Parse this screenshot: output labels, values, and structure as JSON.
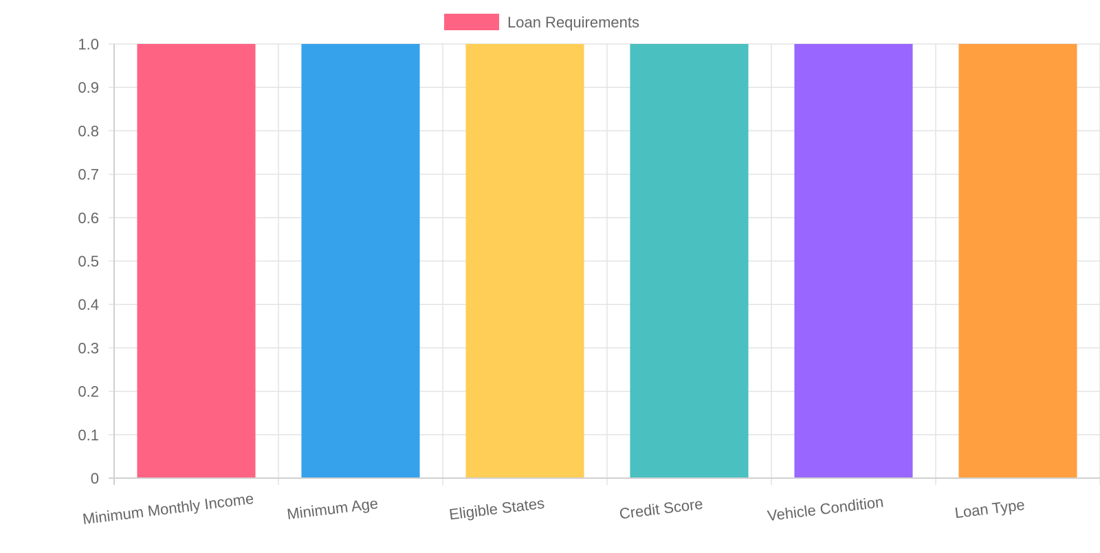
{
  "chart_data": {
    "type": "bar",
    "categories": [
      "Minimum Monthly Income",
      "Minimum Age",
      "Eligible States",
      "Credit Score",
      "Vehicle Condition",
      "Loan Type"
    ],
    "series": [
      {
        "name": "Loan Requirements",
        "values": [
          1,
          1,
          1,
          1,
          1,
          1
        ]
      }
    ],
    "colors": [
      "#ff6384",
      "#36a2eb",
      "#ffce56",
      "#4bc0c0",
      "#9966ff",
      "#ff9f40"
    ],
    "ylim": [
      0,
      1
    ],
    "yticks": [
      "0",
      "0.1",
      "0.2",
      "0.3",
      "0.4",
      "0.5",
      "0.6",
      "0.7",
      "0.8",
      "0.9",
      "1.0"
    ],
    "legend_position": "top",
    "grid": true,
    "title": "",
    "xlabel": "",
    "ylabel": ""
  }
}
